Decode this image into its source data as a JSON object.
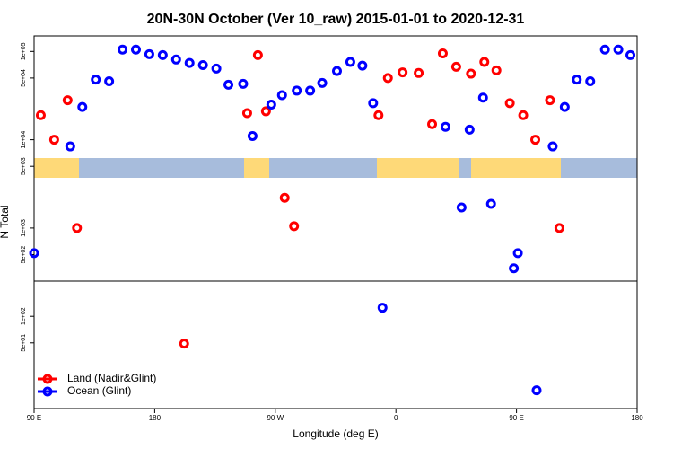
{
  "chart_data": {
    "type": "scatter",
    "title": "20N-30N October (Ver 10_raw)   2015-01-01 to 2020-12-31",
    "xlabel": "Longitude (deg E)",
    "ylabel": "N Total",
    "log_y": true,
    "legend": "bottom-left",
    "xlim": [
      90,
      540
    ],
    "xticks": [
      {
        "value": 90,
        "label": "90 E"
      },
      {
        "value": 180,
        "label": "180"
      },
      {
        "value": 270,
        "label": "90 W"
      },
      {
        "value": 360,
        "label": "0"
      },
      {
        "value": 450,
        "label": "90 E"
      },
      {
        "value": 540,
        "label": "180"
      }
    ],
    "ylim": [
      9,
      150000
    ],
    "yticks": [
      {
        "value": 100000,
        "label": "1e+05"
      },
      {
        "value": 50000,
        "label": "5e+04"
      },
      {
        "value": 10000,
        "label": "1e+04"
      },
      {
        "value": 5000,
        "label": "5e+03"
      },
      {
        "value": 1000,
        "label": "1e+03"
      },
      {
        "value": 500,
        "label": "5e+02"
      },
      {
        "value": 100,
        "label": "1e+02"
      },
      {
        "value": 50,
        "label": "5e+01"
      }
    ],
    "series": [
      {
        "name": "Land (Nadir&Glint)",
        "color": "#ff0000",
        "x": [
          95,
          105,
          115,
          122,
          202,
          249,
          257,
          263,
          277,
          284,
          347,
          354,
          365,
          377,
          387,
          395,
          405,
          416,
          426,
          435,
          445,
          455,
          464,
          475,
          482
        ],
        "values": [
          19000,
          10000,
          28000,
          1000,
          49,
          20000,
          91000,
          21000,
          2200,
          1050,
          19000,
          50000,
          58000,
          57000,
          15000,
          95000,
          67000,
          56000,
          76000,
          61000,
          26000,
          19000,
          10000,
          28000,
          1000
        ]
      },
      {
        "name": "Ocean (Glint)",
        "color": "#0000ff",
        "x": [
          90,
          117,
          126,
          136,
          146,
          156,
          166,
          176,
          186,
          196,
          206,
          216,
          226,
          235,
          246,
          253,
          267,
          275,
          286,
          296,
          305,
          316,
          326,
          335,
          343,
          350,
          397,
          409,
          415,
          425,
          431,
          448,
          451,
          465,
          477,
          486,
          495,
          505,
          516,
          526,
          535
        ],
        "values": [
          520,
          8400,
          23500,
          48000,
          46000,
          105000,
          105000,
          93000,
          91000,
          81000,
          74000,
          70000,
          64000,
          42000,
          43000,
          11000,
          25000,
          32000,
          36000,
          36000,
          44000,
          60000,
          76000,
          69000,
          26000,
          125,
          14000,
          1710,
          13000,
          30000,
          1880,
          350,
          520,
          14.5,
          8400,
          23500,
          48000,
          46000,
          105000,
          105000,
          91000
        ]
      }
    ]
  }
}
